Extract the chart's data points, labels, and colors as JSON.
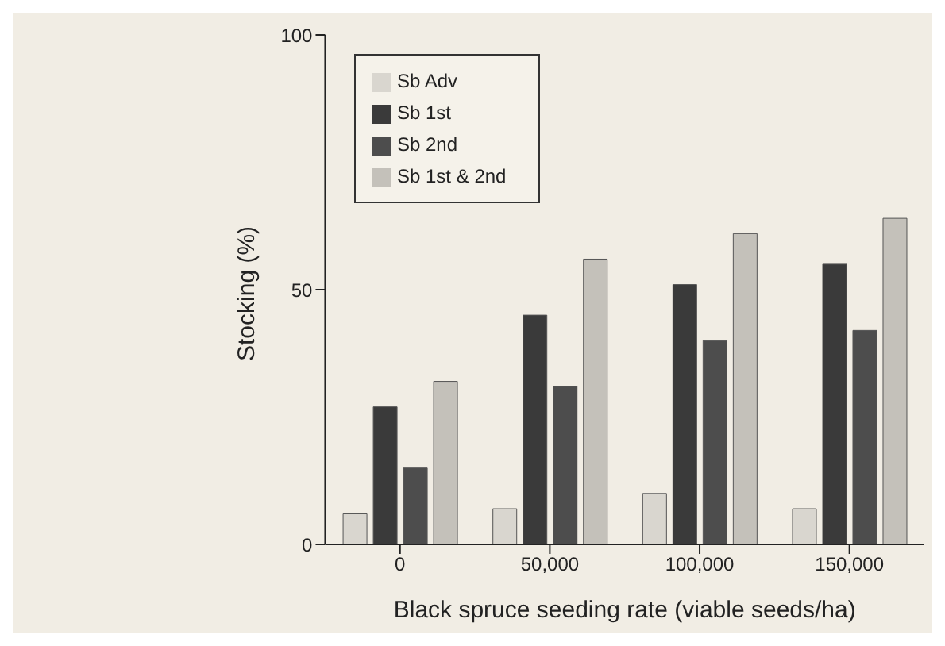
{
  "chart_data": {
    "type": "bar",
    "xlabel": "Black spruce seeding rate (viable seeds/ha)",
    "ylabel": "Stocking (%)",
    "categories": [
      "0",
      "50,000",
      "100,000",
      "150,000"
    ],
    "series": [
      {
        "name": "Sb Adv",
        "color": "#d9d6cf",
        "values": [
          6,
          7,
          10,
          7
        ]
      },
      {
        "name": "Sb 1st",
        "color": "#3a3a3a",
        "values": [
          27,
          45,
          51,
          55
        ]
      },
      {
        "name": "Sb 2nd",
        "color": "#4d4d4d",
        "values": [
          15,
          31,
          40,
          42
        ]
      },
      {
        "name": "Sb 1st & 2nd",
        "color": "#c4c1ba",
        "values": [
          32,
          56,
          61,
          64
        ]
      }
    ],
    "ylim": [
      0,
      100
    ],
    "yticks": [
      0,
      50,
      100
    ],
    "grid": false,
    "legend": "top left"
  }
}
